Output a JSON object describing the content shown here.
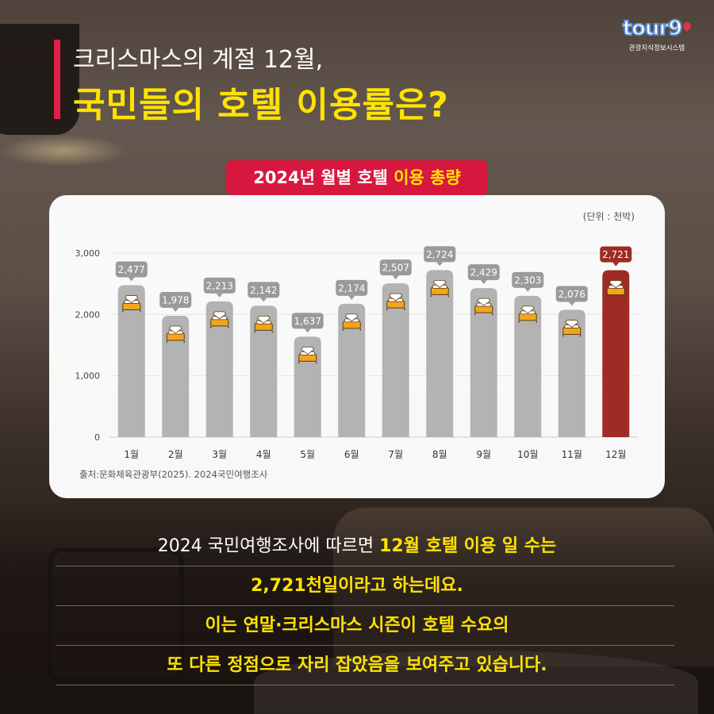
{
  "logo": {
    "word": "tour",
    "word_end": "9",
    "sub": "관광지식정보시스템"
  },
  "title": {
    "line1": "크리스마스의 계절 12월,",
    "line2": "국민들의 호텔 이용률은?"
  },
  "pill": {
    "prefix": "2024년 월별 호텔 ",
    "highlight": "이용 총량"
  },
  "unit_label": "(단위 : 천박)",
  "source": "출처:문화체육관광부(2025). 2024국민여행조사",
  "chart_data": {
    "type": "bar",
    "categories": [
      "1월",
      "2월",
      "3월",
      "4월",
      "5월",
      "6월",
      "7월",
      "8월",
      "9월",
      "10월",
      "11월",
      "12월"
    ],
    "values": [
      2477,
      1978,
      2213,
      2142,
      1637,
      2174,
      2507,
      2724,
      2429,
      2303,
      2076,
      2721
    ],
    "value_labels": [
      "2,477",
      "1,978",
      "2,213",
      "2,142",
      "1,637",
      "2,174",
      "2,507",
      "2,724",
      "2,429",
      "2,303",
      "2,076",
      "2,721"
    ],
    "yticks": [
      0,
      1000,
      2000,
      3000
    ],
    "ytick_labels": [
      "0",
      "1,000",
      "2,000",
      "3,000"
    ],
    "ylim": [
      0,
      3000
    ],
    "highlight_index": 11,
    "colors": {
      "bar": "#b3b3b3",
      "highlight": "#9e2b24",
      "label_bg": "#9a9a9a"
    },
    "bar_icon": "hotel-bed-diamond-icon"
  },
  "body": {
    "line1_a": "2024 국민여행조사에 따르면 ",
    "line1_b": "12월 호텔 이용 일 수는",
    "line2": "2,721천일이라고 하는데요.",
    "line3": "이는 연말·크리스마스 시즌이 호텔 수요의",
    "line4": "또 다른 정점으로 자리 잡았음을 보여주고 있습니다."
  }
}
